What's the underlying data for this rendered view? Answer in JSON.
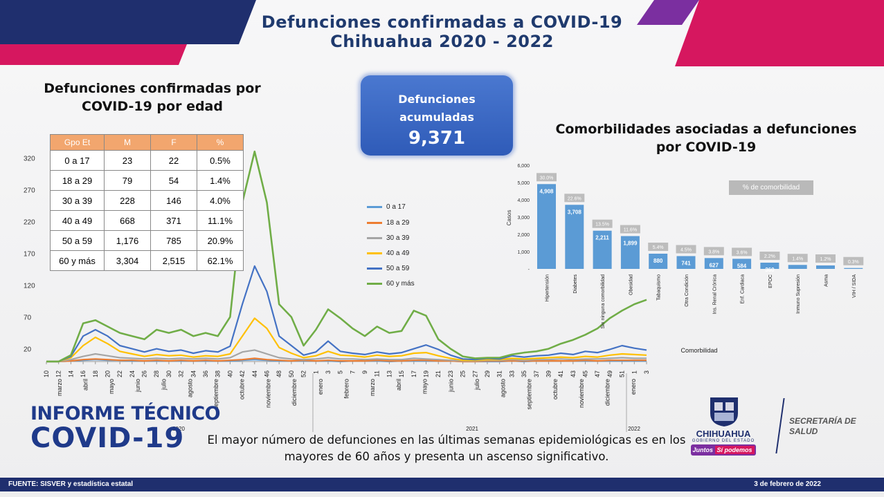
{
  "header": {
    "title_line1": "Defunciones confirmadas a COVID-19",
    "title_line2": "Chihuahua 2020 - 2022"
  },
  "age_panel": {
    "title_line1": "Defunciones confirmadas por",
    "title_line2": "COVID-19 por edad",
    "columns": [
      "Gpo Et",
      "M",
      "F",
      "%"
    ],
    "rows": [
      [
        "0 a 17",
        "23",
        "22",
        "0.5%"
      ],
      [
        "18 a 29",
        "79",
        "54",
        "1.4%"
      ],
      [
        "30 a 39",
        "228",
        "146",
        "4.0%"
      ],
      [
        "40 a 49",
        "668",
        "371",
        "11.1%"
      ],
      [
        "50 a 59",
        "1,176",
        "785",
        "20.9%"
      ],
      [
        "60 y más",
        "3,304",
        "2,515",
        "62.1%"
      ]
    ]
  },
  "total": {
    "label_line1": "Defunciones",
    "label_line2": "acumuladas",
    "value": "9,371"
  },
  "comorb_panel": {
    "title_line1": "Comorbilidades asociadas a defunciones",
    "title_line2": "por COVID-19",
    "legend_label": "% de comorbilidad",
    "ylabel": "Casos",
    "xlabel": "Comorbilidad"
  },
  "line_chart_data": {
    "type": "line",
    "y_ticks": [
      "320",
      "270",
      "220",
      "170",
      "120",
      "70",
      "20"
    ],
    "ylim": [
      0,
      340
    ],
    "x_tick_labels": [
      "10",
      "12",
      "14",
      "16",
      "18",
      "20",
      "22",
      "24",
      "26",
      "28",
      "30",
      "32",
      "34",
      "36",
      "38",
      "40",
      "42",
      "44",
      "46",
      "48",
      "50",
      "52",
      "1",
      "3",
      "5",
      "7",
      "9",
      "11",
      "13",
      "15",
      "17",
      "19",
      "21",
      "23",
      "25",
      "27",
      "29",
      "31",
      "33",
      "35",
      "37",
      "39",
      "41",
      "43",
      "45",
      "47",
      "49",
      "51",
      "1",
      "3"
    ],
    "month_labels": [
      "marzo",
      "abril",
      "mayo",
      "junio",
      "julio",
      "agosto",
      "septiembre",
      "octubre",
      "noviembre",
      "diciembre",
      "enero",
      "febrero",
      "marzo",
      "abril",
      "mayo",
      "junio",
      "julio",
      "agosto",
      "septiembre",
      "octubre",
      "noviembre",
      "diciembre",
      "enero"
    ],
    "year_labels": [
      "2020",
      "2021",
      "2022"
    ],
    "series": [
      {
        "name": "0 a 17",
        "color": "#5b9bd5",
        "values": [
          0,
          0,
          1,
          2,
          3,
          2,
          2,
          1,
          1,
          1,
          1,
          1,
          1,
          1,
          1,
          1,
          2,
          3,
          2,
          1,
          1,
          1,
          1,
          1,
          0,
          1,
          1,
          1,
          0,
          1,
          1,
          1,
          1,
          1,
          0,
          0,
          0,
          0,
          1,
          0,
          1,
          1,
          1,
          1,
          1,
          1,
          1,
          1,
          1,
          1
        ]
      },
      {
        "name": "18 a 29",
        "color": "#ed7d31",
        "values": [
          0,
          0,
          1,
          3,
          4,
          3,
          2,
          2,
          1,
          2,
          1,
          2,
          1,
          2,
          1,
          2,
          3,
          5,
          3,
          2,
          1,
          2,
          1,
          2,
          1,
          1,
          1,
          2,
          1,
          1,
          2,
          2,
          1,
          1,
          0,
          0,
          1,
          1,
          1,
          1,
          1,
          1,
          1,
          1,
          2,
          1,
          2,
          2,
          2,
          2
        ]
      },
      {
        "name": "30 a 39",
        "color": "#a5a5a5",
        "values": [
          0,
          0,
          3,
          8,
          12,
          9,
          6,
          5,
          4,
          5,
          4,
          5,
          4,
          5,
          4,
          6,
          15,
          18,
          12,
          6,
          4,
          3,
          4,
          6,
          4,
          4,
          3,
          4,
          3,
          3,
          5,
          4,
          3,
          2,
          1,
          1,
          2,
          2,
          3,
          2,
          3,
          3,
          4,
          3,
          4,
          4,
          5,
          6,
          5,
          5
        ]
      },
      {
        "name": "40 a 49",
        "color": "#ffc000",
        "values": [
          0,
          0,
          6,
          25,
          38,
          28,
          16,
          12,
          8,
          11,
          9,
          10,
          7,
          9,
          8,
          12,
          40,
          68,
          52,
          22,
          13,
          6,
          9,
          16,
          10,
          9,
          7,
          10,
          8,
          9,
          13,
          14,
          9,
          5,
          2,
          2,
          3,
          3,
          5,
          4,
          5,
          6,
          7,
          6,
          8,
          7,
          10,
          12,
          11,
          10
        ]
      },
      {
        "name": "50 a 59",
        "color": "#4472c4",
        "values": [
          0,
          0,
          8,
          40,
          50,
          40,
          25,
          20,
          15,
          20,
          16,
          18,
          13,
          17,
          15,
          24,
          90,
          150,
          110,
          40,
          25,
          10,
          15,
          32,
          16,
          13,
          11,
          15,
          12,
          14,
          20,
          26,
          19,
          10,
          4,
          3,
          5,
          4,
          9,
          7,
          9,
          10,
          13,
          11,
          16,
          14,
          19,
          25,
          21,
          18
        ]
      },
      {
        "name": "60 y más",
        "color": "#70ad47",
        "values": [
          0,
          0,
          10,
          60,
          65,
          55,
          45,
          40,
          35,
          50,
          45,
          50,
          40,
          45,
          40,
          70,
          250,
          330,
          250,
          90,
          70,
          25,
          50,
          82,
          68,
          52,
          40,
          55,
          45,
          48,
          80,
          72,
          35,
          20,
          8,
          5,
          6,
          6,
          11,
          14,
          16,
          20,
          28,
          34,
          42,
          52,
          68,
          80,
          90,
          97
        ]
      }
    ]
  },
  "comorb_chart_data": {
    "type": "bar",
    "categories": [
      "Hipertensión",
      "Diabetes",
      "Sin ninguna comorbilidad",
      "Obesidad",
      "Tabaquismo",
      "Otra Condición",
      "Ins. Renal Crónica",
      "Enf. Cardiaca",
      "EPOC",
      "Inmuno Supresión",
      "Asma",
      "VIH / SIDA"
    ],
    "values": [
      4908,
      3708,
      2211,
      1899,
      880,
      741,
      627,
      584,
      360,
      null,
      null,
      null
    ],
    "value_labels": [
      "4,908",
      "3,708",
      "2,211",
      "1,899",
      "880",
      "741",
      "627",
      "584",
      "360",
      "",
      "",
      ""
    ],
    "percent_labels": [
      "30.0%",
      "22.6%",
      "13.5%",
      "11.6%",
      "5.4%",
      "4.5%",
      "3.8%",
      "3.6%",
      "2.2%",
      "1.4%",
      "1.2%",
      "0.3%"
    ],
    "y_ticks": [
      "6,000",
      "5,000",
      "4,000",
      "3,000",
      "2,000",
      "1,000",
      "-"
    ],
    "ylim": [
      0,
      6000
    ],
    "ylabel": "Casos",
    "xlabel": "Comorbilidad",
    "bar_color": "#5b9bd5"
  },
  "bottom": {
    "informe_line1": "INFORME TÉCNICO",
    "informe_line2": "COVID-19",
    "message_line1": "El mayor número de defunciones en las últimas semanas epidemiológicas es en los",
    "message_line2": "mayores de 60 años y presenta un ascenso significativo.",
    "logo_name": "CHIHUAHUA",
    "logo_sub": "GOBIERNO DEL ESTADO",
    "logo_slogan_1": "Juntos",
    "logo_slogan_2": "Sí podemos",
    "secretaria_1": "SECRETARÍA DE",
    "secretaria_2": "SALUD"
  },
  "footer": {
    "source": "FUENTE: SISVER y estadística estatal",
    "date": "3 de febrero de 2022"
  },
  "colors": {
    "navy": "#1f2f6e",
    "magenta": "#d6175f",
    "purple": "#7b2fa0",
    "title_blue": "#1f3a6e"
  }
}
